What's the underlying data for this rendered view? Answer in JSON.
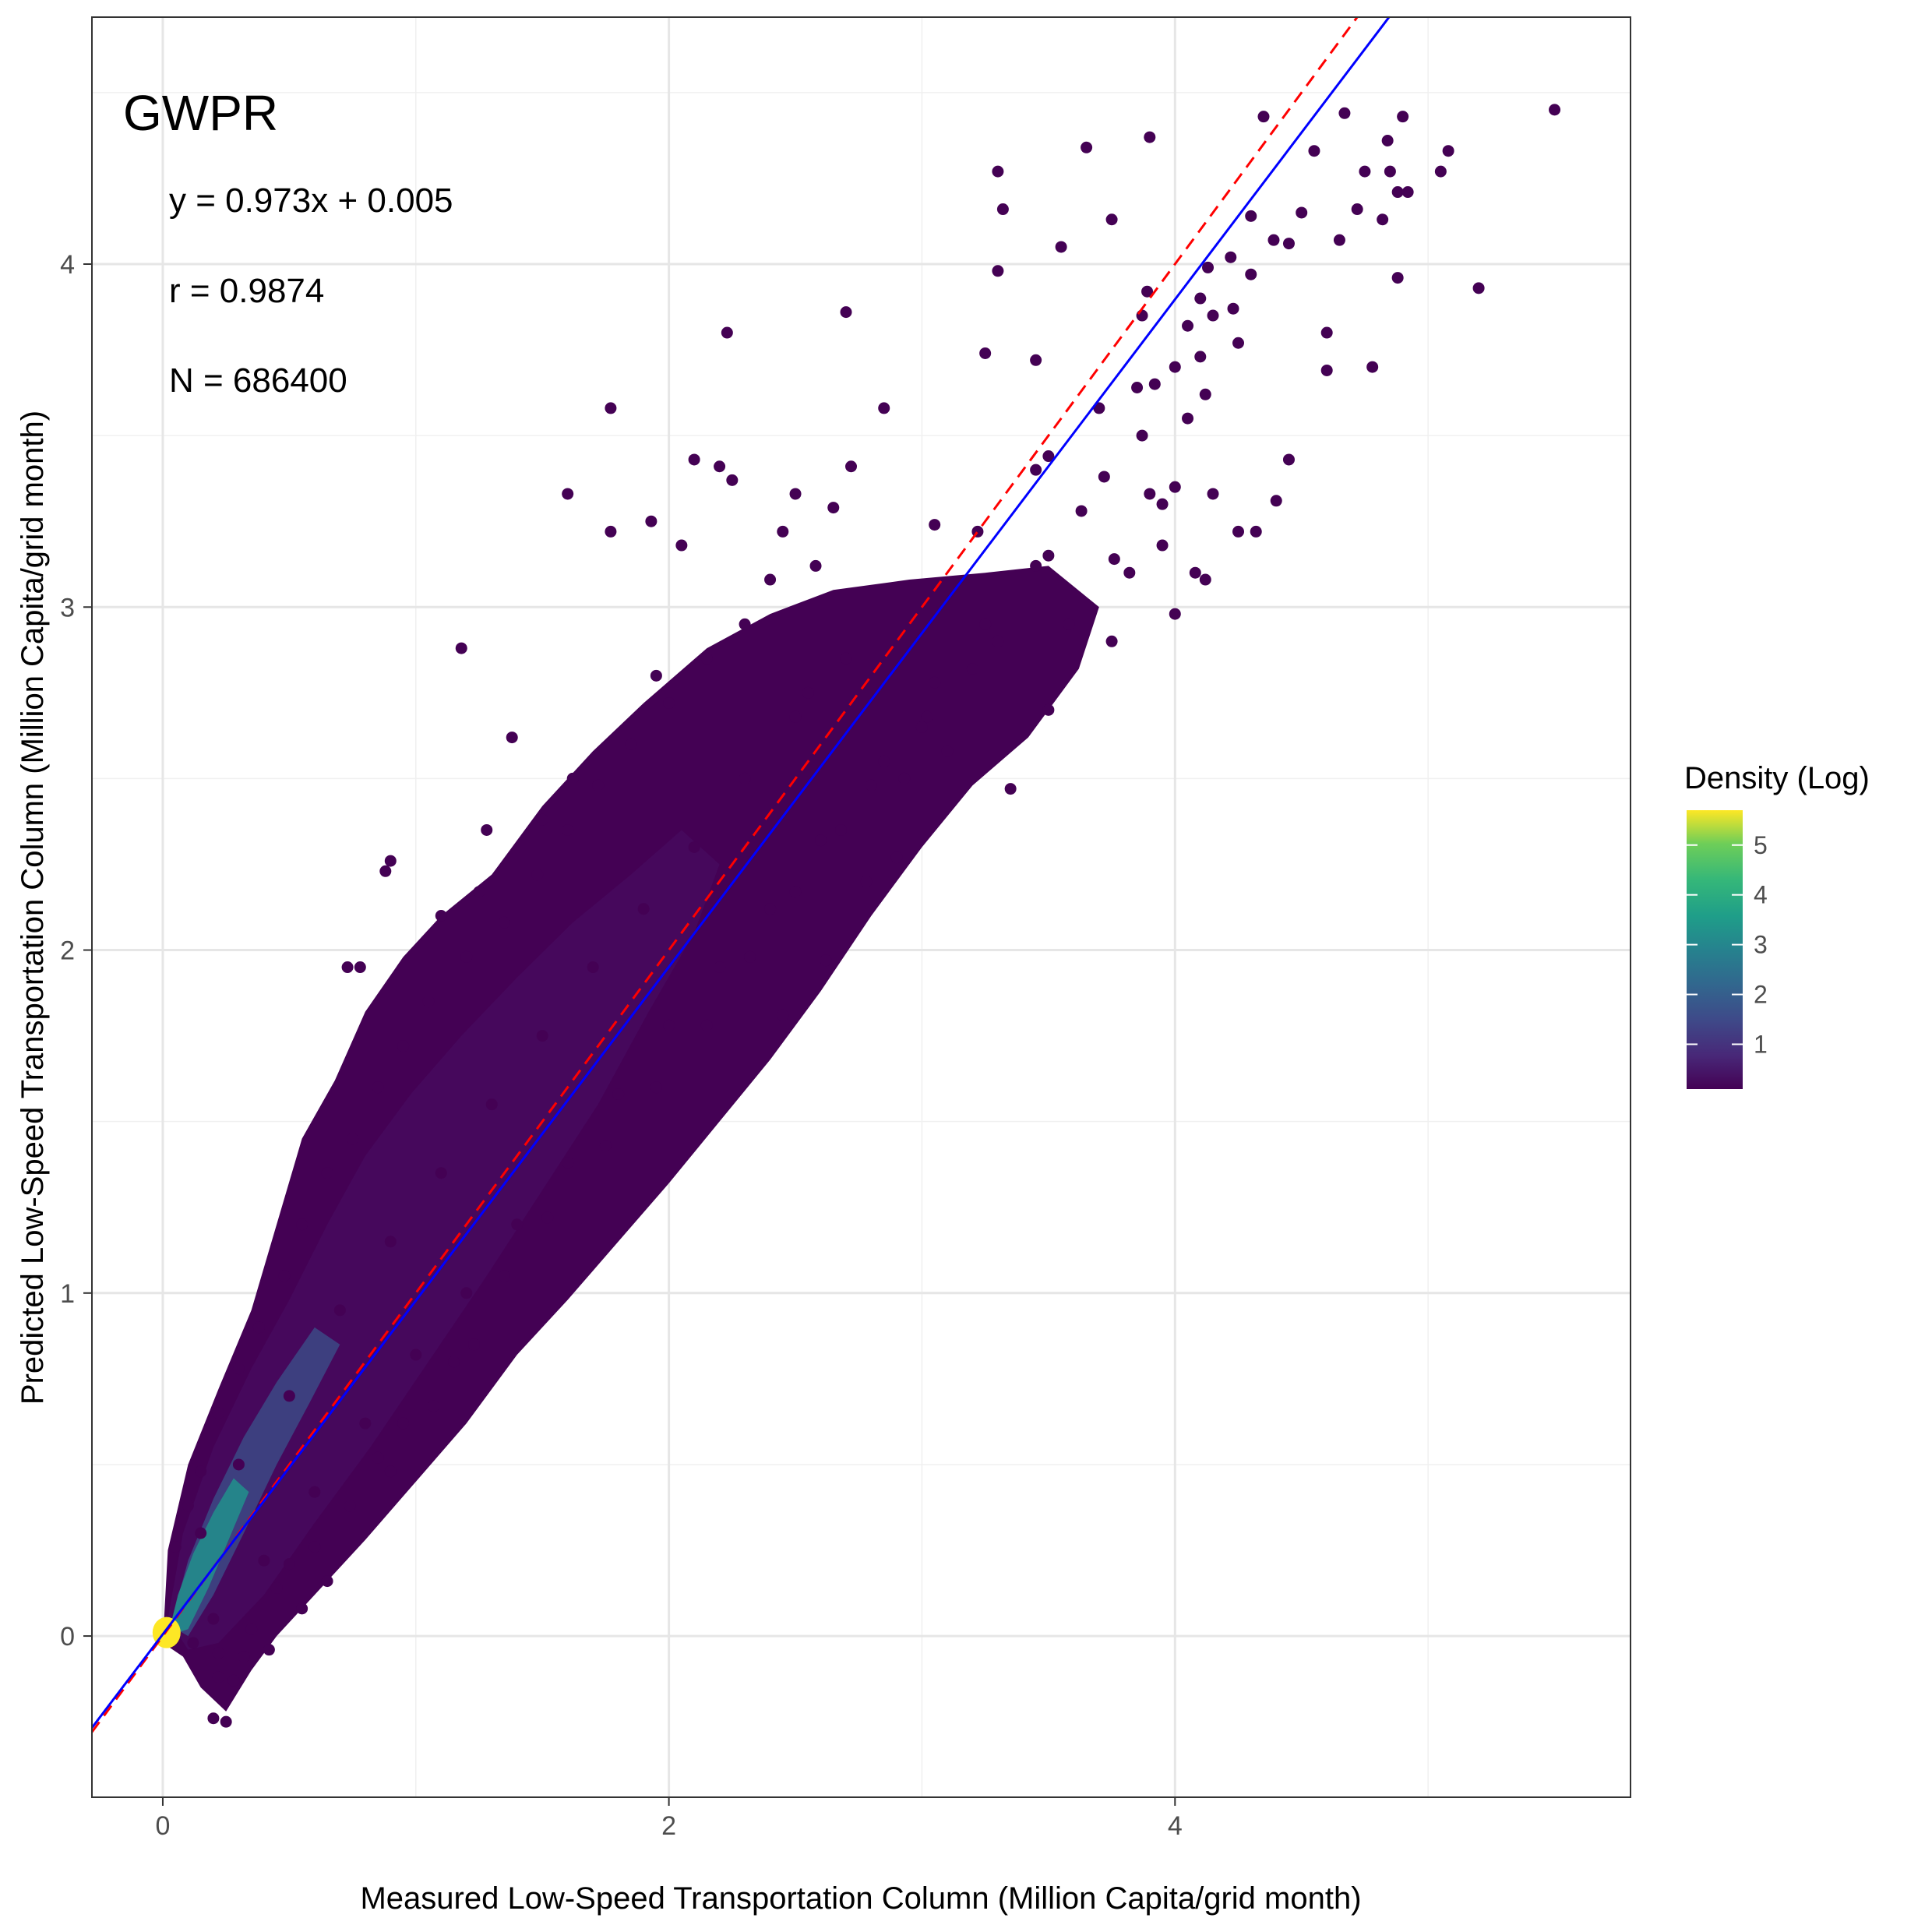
{
  "chart_data": {
    "type": "scatter",
    "title": "GWPR",
    "xlabel": "Measured Low-Speed Transportation Column (Million Capita/grid month)",
    "ylabel": "Predicted Low-Speed Transportation Column (Million Capita/grid month)",
    "xlim": [
      -0.28,
      5.8
    ],
    "ylim": [
      -0.47,
      4.72
    ],
    "x_ticks": [
      0,
      2,
      4
    ],
    "y_ticks": [
      0,
      1,
      2,
      3,
      4
    ],
    "x_tick_labels": [
      "0",
      "2",
      "4"
    ],
    "y_tick_labels": [
      "0",
      "1",
      "2",
      "3",
      "4"
    ],
    "grid": true,
    "annotations": {
      "equation": "y = 0.973x + 0.005",
      "r": "r = 0.9874",
      "n": "N = 686400"
    },
    "fit_line": {
      "slope": 0.973,
      "intercept": 0.005,
      "color": "#0000ff",
      "style": "solid"
    },
    "identity_line": {
      "slope": 1,
      "intercept": 0,
      "color": "#ff0000",
      "style": "dashed"
    },
    "colorbar": {
      "title": "Density (Log)",
      "palette": "viridis",
      "range": [
        0.1,
        5.7
      ],
      "ticks": [
        1,
        2,
        3,
        4,
        5
      ],
      "tick_labels": [
        "1",
        "2",
        "3",
        "4",
        "5"
      ]
    },
    "points": [
      [
        5.5,
        4.45
      ],
      [
        4.67,
        4.44
      ],
      [
        4.35,
        4.43
      ],
      [
        4.9,
        4.43
      ],
      [
        4.84,
        4.36
      ],
      [
        3.9,
        4.37
      ],
      [
        3.65,
        4.34
      ],
      [
        4.55,
        4.33
      ],
      [
        5.08,
        4.33
      ],
      [
        3.3,
        4.27
      ],
      [
        4.85,
        4.27
      ],
      [
        4.88,
        4.21
      ],
      [
        5.05,
        4.27
      ],
      [
        4.75,
        4.27
      ],
      [
        4.72,
        4.16
      ],
      [
        4.92,
        4.21
      ],
      [
        4.5,
        4.15
      ],
      [
        3.32,
        4.16
      ],
      [
        3.75,
        4.13
      ],
      [
        4.3,
        4.14
      ],
      [
        4.82,
        4.13
      ],
      [
        4.45,
        4.06
      ],
      [
        3.55,
        4.05
      ],
      [
        4.65,
        4.07
      ],
      [
        4.39,
        4.07
      ],
      [
        4.22,
        4.02
      ],
      [
        4.13,
        3.99
      ],
      [
        3.3,
        3.98
      ],
      [
        4.3,
        3.97
      ],
      [
        4.15,
        3.85
      ],
      [
        4.6,
        3.8
      ],
      [
        4.88,
        3.96
      ],
      [
        5.2,
        3.93
      ],
      [
        2.7,
        3.86
      ],
      [
        2.23,
        3.8
      ],
      [
        3.89,
        3.92
      ],
      [
        3.87,
        3.85
      ],
      [
        4.23,
        3.87
      ],
      [
        4.05,
        3.82
      ],
      [
        4.1,
        3.9
      ],
      [
        4.25,
        3.77
      ],
      [
        3.25,
        3.74
      ],
      [
        3.45,
        3.72
      ],
      [
        4.6,
        3.69
      ],
      [
        4.78,
        3.7
      ],
      [
        4.1,
        3.73
      ],
      [
        4.0,
        3.7
      ],
      [
        3.85,
        3.64
      ],
      [
        3.92,
        3.65
      ],
      [
        3.7,
        3.58
      ],
      [
        1.77,
        3.58
      ],
      [
        2.85,
        3.58
      ],
      [
        4.12,
        3.62
      ],
      [
        4.05,
        3.55
      ],
      [
        3.87,
        3.5
      ],
      [
        3.5,
        3.44
      ],
      [
        3.45,
        3.4
      ],
      [
        2.1,
        3.43
      ],
      [
        2.2,
        3.41
      ],
      [
        2.72,
        3.41
      ],
      [
        2.25,
        3.37
      ],
      [
        2.5,
        3.33
      ],
      [
        2.65,
        3.29
      ],
      [
        3.63,
        3.28
      ],
      [
        3.95,
        3.3
      ],
      [
        4.15,
        3.33
      ],
      [
        4.45,
        3.43
      ],
      [
        4.0,
        3.35
      ],
      [
        3.9,
        3.33
      ],
      [
        3.72,
        3.38
      ],
      [
        4.4,
        3.31
      ],
      [
        1.6,
        3.33
      ],
      [
        2.45,
        3.22
      ],
      [
        1.77,
        3.22
      ],
      [
        1.93,
        3.25
      ],
      [
        2.05,
        3.18
      ],
      [
        3.05,
        3.24
      ],
      [
        3.22,
        3.22
      ],
      [
        4.25,
        3.22
      ],
      [
        4.32,
        3.22
      ],
      [
        3.95,
        3.18
      ],
      [
        4.08,
        3.1
      ],
      [
        4.12,
        3.08
      ],
      [
        4.0,
        2.98
      ],
      [
        2.4,
        3.08
      ],
      [
        2.58,
        3.12
      ],
      [
        3.5,
        3.15
      ],
      [
        3.76,
        3.14
      ],
      [
        3.82,
        3.1
      ],
      [
        1.18,
        2.88
      ],
      [
        1.38,
        2.62
      ],
      [
        1.28,
        2.35
      ],
      [
        0.9,
        2.26
      ],
      [
        0.88,
        2.23
      ],
      [
        0.78,
        1.95
      ],
      [
        0.73,
        1.95
      ],
      [
        1.1,
        2.1
      ],
      [
        1.25,
        2.17
      ],
      [
        1.5,
        2.38
      ],
      [
        1.62,
        2.5
      ],
      [
        1.95,
        2.8
      ],
      [
        2.55,
        2.75
      ],
      [
        2.93,
        2.5
      ],
      [
        3.35,
        2.47
      ],
      [
        3.1,
        2.58
      ],
      [
        3.02,
        2.68
      ],
      [
        3.5,
        2.7
      ],
      [
        3.58,
        2.95
      ],
      [
        3.75,
        2.9
      ],
      [
        3.3,
        2.9
      ],
      [
        2.78,
        2.2
      ],
      [
        2.9,
        2.27
      ],
      [
        2.62,
        1.97
      ],
      [
        2.45,
        1.81
      ],
      [
        1.23,
        0.85
      ],
      [
        1.07,
        0.67
      ],
      [
        0.9,
        0.48
      ],
      [
        0.74,
        0.38
      ],
      [
        0.6,
        0.26
      ],
      [
        0.5,
        0.21
      ],
      [
        0.45,
        0.14
      ],
      [
        0.28,
        -0.13
      ],
      [
        0.22,
        -0.12
      ],
      [
        0.25,
        -0.25
      ],
      [
        0.2,
        -0.24
      ],
      [
        0.22,
        -0.05
      ],
      [
        0.32,
        -0.06
      ],
      [
        0.42,
        -0.04
      ],
      [
        0.12,
        -0.02
      ],
      [
        0.35,
        0.02
      ],
      [
        0.55,
        0.08
      ],
      [
        0.65,
        0.16
      ],
      [
        0.85,
        0.52
      ],
      [
        0.95,
        0.62
      ],
      [
        1.15,
        0.8
      ],
      [
        1.35,
        1.05
      ],
      [
        1.52,
        1.22
      ],
      [
        1.75,
        1.43
      ],
      [
        1.95,
        1.6
      ],
      [
        2.15,
        1.78
      ],
      [
        2.32,
        1.98
      ],
      [
        2.5,
        2.17
      ],
      [
        2.68,
        2.35
      ],
      [
        2.85,
        2.55
      ],
      [
        3.05,
        2.78
      ],
      [
        3.25,
        2.95
      ],
      [
        3.45,
        3.12
      ],
      [
        0.05,
        0.26
      ],
      [
        0.1,
        0.38
      ],
      [
        0.15,
        0.48
      ],
      [
        0.22,
        0.65
      ],
      [
        0.3,
        0.78
      ],
      [
        0.38,
        0.9
      ],
      [
        0.48,
        1.05
      ],
      [
        0.55,
        1.2
      ],
      [
        0.65,
        1.35
      ],
      [
        0.75,
        1.45
      ],
      [
        0.85,
        1.6
      ],
      [
        0.95,
        1.72
      ],
      [
        1.05,
        1.85
      ],
      [
        1.2,
        1.98
      ],
      [
        1.35,
        2.08
      ],
      [
        1.48,
        2.22
      ],
      [
        1.6,
        2.35
      ],
      [
        1.72,
        2.48
      ],
      [
        1.85,
        2.6
      ],
      [
        2.0,
        2.72
      ],
      [
        2.15,
        2.85
      ],
      [
        2.3,
        2.95
      ],
      [
        0.15,
        0.3
      ],
      [
        0.3,
        0.5
      ],
      [
        0.5,
        0.7
      ],
      [
        0.7,
        0.95
      ],
      [
        0.9,
        1.15
      ],
      [
        1.1,
        1.35
      ],
      [
        1.3,
        1.55
      ],
      [
        1.5,
        1.75
      ],
      [
        1.7,
        1.95
      ],
      [
        1.9,
        2.12
      ],
      [
        2.1,
        2.3
      ],
      [
        2.3,
        2.5
      ],
      [
        2.5,
        2.68
      ],
      [
        2.7,
        2.85
      ],
      [
        0.2,
        0.05
      ],
      [
        0.4,
        0.22
      ],
      [
        0.6,
        0.42
      ],
      [
        0.8,
        0.62
      ],
      [
        1.0,
        0.82
      ],
      [
        1.2,
        1.0
      ],
      [
        1.4,
        1.2
      ],
      [
        1.6,
        1.38
      ],
      [
        1.8,
        1.58
      ],
      [
        2.0,
        1.78
      ],
      [
        2.2,
        1.95
      ],
      [
        2.4,
        2.12
      ],
      [
        2.6,
        2.32
      ],
      [
        2.8,
        2.48
      ],
      [
        3.0,
        2.65
      ],
      [
        3.2,
        2.82
      ]
    ]
  }
}
